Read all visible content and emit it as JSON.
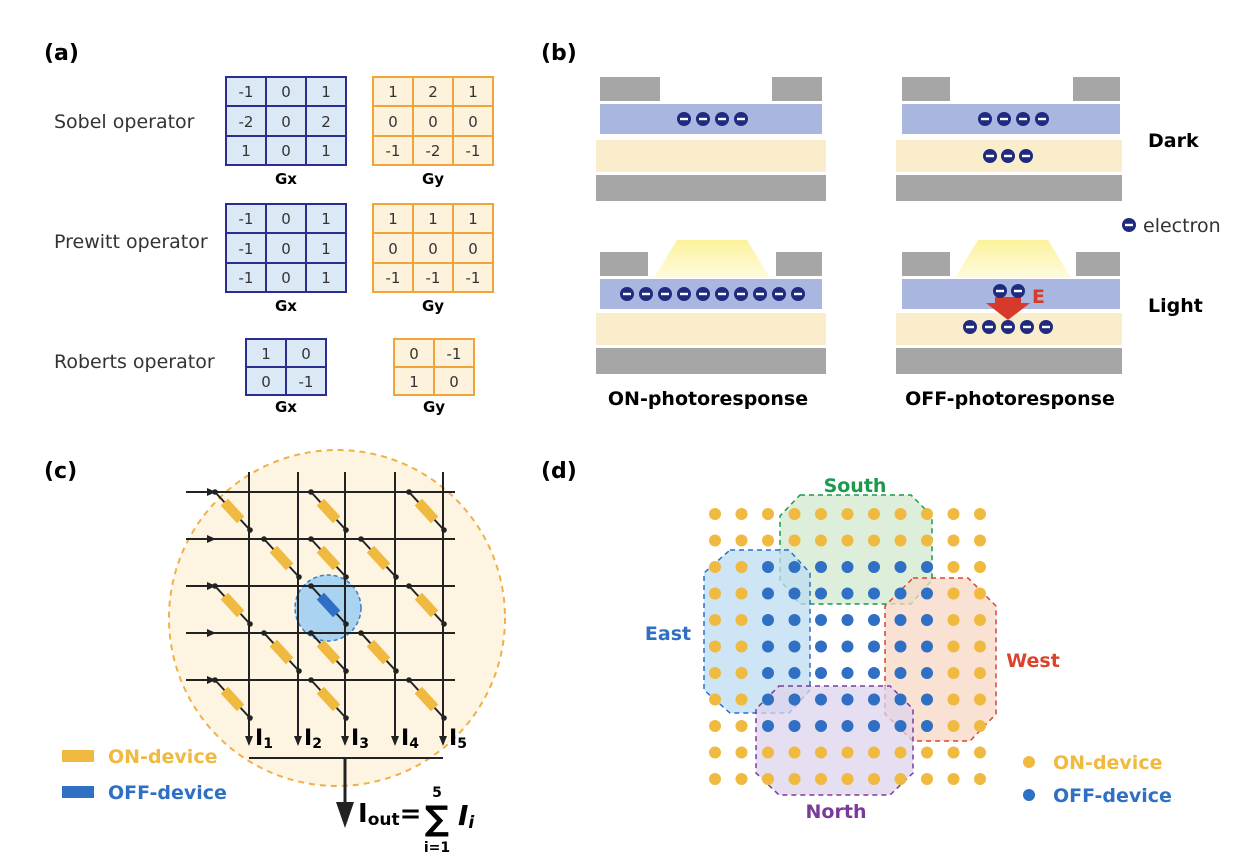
{
  "panel_labels": {
    "a": "(a)",
    "b": "(b)",
    "c": "(c)",
    "d": "(d)"
  },
  "colors": {
    "gx_border": "#2a2f8f",
    "gx_fill": "#dbe8f6",
    "gy_border": "#f0a43a",
    "gy_fill": "#fdf2dc",
    "gray": "#a6a6a6",
    "blue_layer": "#a9b6e0",
    "cream_layer": "#f9edcc",
    "electron": "#1f2a80",
    "field_arrow": "#d83a2a",
    "on_device": "#f0b93f",
    "off_device": "#2f6fc4",
    "south": "#1a9a4a",
    "west": "#d9442e",
    "east": "#2f6fc4",
    "north": "#7b3a9a"
  },
  "panel_a": {
    "operators": [
      {
        "name": "Sobel operator",
        "gx": [
          [
            "-1",
            "0",
            "1"
          ],
          [
            "-2",
            "0",
            "2"
          ],
          [
            "1",
            "0",
            "1"
          ]
        ],
        "gy": [
          [
            "1",
            "2",
            "1"
          ],
          [
            "0",
            "0",
            "0"
          ],
          [
            "-1",
            "-2",
            "-1"
          ]
        ]
      },
      {
        "name": "Prewitt operator",
        "gx": [
          [
            "-1",
            "0",
            "1"
          ],
          [
            "-1",
            "0",
            "1"
          ],
          [
            "-1",
            "0",
            "1"
          ]
        ],
        "gy": [
          [
            "1",
            "1",
            "1"
          ],
          [
            "0",
            "0",
            "0"
          ],
          [
            "-1",
            "-1",
            "-1"
          ]
        ]
      },
      {
        "name": "Roberts operator",
        "gx": [
          [
            "1",
            "0"
          ],
          [
            "0",
            "-1"
          ]
        ],
        "gy": [
          [
            "0",
            "-1"
          ],
          [
            "1",
            "0"
          ]
        ]
      }
    ],
    "gx_label": "Gx",
    "gy_label": "Gy"
  },
  "panel_b": {
    "dark_label": "Dark",
    "light_label": "Light",
    "legend_electron": "electron",
    "field_label": "E",
    "on_caption": "ON-photoresponse",
    "off_caption": "OFF-photoresponse",
    "electron_sign": "−"
  },
  "panel_c": {
    "currents": [
      "I",
      "I",
      "I",
      "I",
      "I"
    ],
    "current_subs": [
      "1",
      "2",
      "3",
      "4",
      "5"
    ],
    "output": {
      "i": "I",
      "sub": "out",
      "eq": "=",
      "sum": "∑",
      "upper": "5",
      "lower": "i=1",
      "term": "I",
      "term_sub": "i"
    },
    "legend_on": "ON-device",
    "legend_off": "OFF-device"
  },
  "panel_d": {
    "labels": {
      "south": "South",
      "west": "West",
      "east": "East",
      "north": "North"
    },
    "legend_on": "ON-device",
    "legend_off": "OFF-device"
  }
}
